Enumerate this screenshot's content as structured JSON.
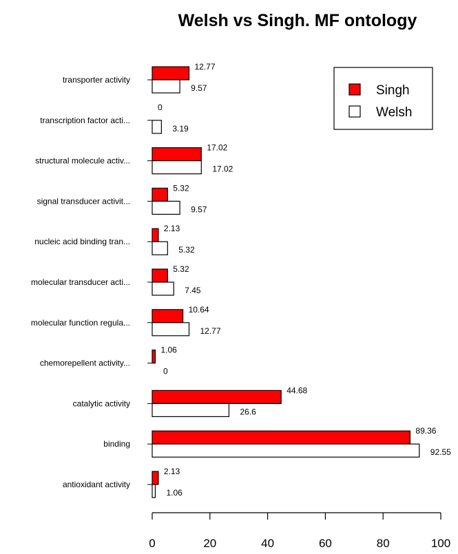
{
  "chart_data": {
    "type": "bar",
    "orientation": "horizontal",
    "title": "Welsh vs Singh. MF ontology",
    "xlabel": "",
    "ylabel": "",
    "xlim": [
      0,
      100
    ],
    "xticks": [
      "0",
      "20",
      "40",
      "60",
      "80",
      "100"
    ],
    "grid": false,
    "legend_position": "top-right",
    "categories": [
      "antioxidant activity",
      "binding",
      "catalytic activity",
      "chemorepellent activity...",
      "molecular function regula...",
      "molecular transducer acti...",
      "nucleic acid binding tran...",
      "signal transducer activit...",
      "structural molecule activ...",
      "transcription factor acti...",
      "transporter activity"
    ],
    "series": [
      {
        "name": "Singh",
        "color": "#ff0000",
        "values": [
          2.13,
          89.36,
          44.68,
          1.06,
          10.64,
          5.32,
          2.13,
          5.32,
          17.02,
          0,
          12.77
        ],
        "labels": [
          "2.13",
          "89.36",
          "44.68",
          "1.06",
          "10.64",
          "5.32",
          "2.13",
          "5.32",
          "17.02",
          "0",
          "12.77"
        ]
      },
      {
        "name": "Welsh",
        "color": "#ffffff",
        "values": [
          1.06,
          92.55,
          26.6,
          0,
          12.77,
          7.45,
          5.32,
          9.57,
          17.02,
          3.19,
          9.57
        ],
        "labels": [
          "1.06",
          "92.55",
          "26.6",
          "0",
          "12.77",
          "7.45",
          "5.32",
          "9.57",
          "17.02",
          "3.19",
          "9.57"
        ]
      }
    ]
  }
}
